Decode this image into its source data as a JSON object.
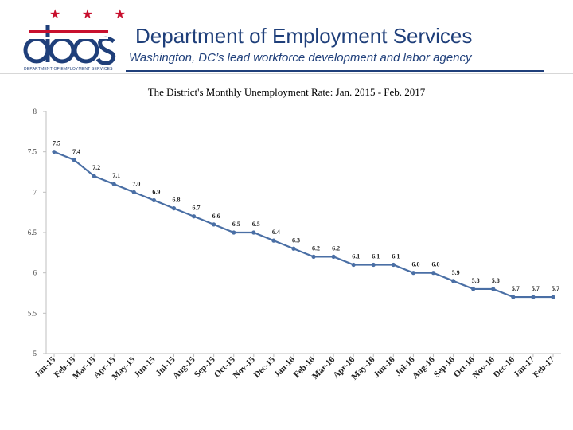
{
  "header": {
    "stars": "★ ★ ★",
    "logo_text": "does",
    "logo_tagline": "DEPARTMENT OF EMPLOYMENT SERVICES",
    "title": "Department of Employment Services",
    "subtitle": "Washington, DC’s lead workforce development and labor agency",
    "colors": {
      "brand_blue": "#1f3f7a",
      "star_red": "#c8102e"
    }
  },
  "chart_data": {
    "type": "line",
    "title": "The District's Monthly Unemployment Rate: Jan. 2015 - Feb. 2017",
    "xlabel": "",
    "ylabel": "",
    "ylim": [
      5,
      8
    ],
    "yticks": [
      "5",
      "5.5",
      "6",
      "6.5",
      "7",
      "7.5",
      "8"
    ],
    "grid": false,
    "line_color": "#4a6fa5",
    "categories": [
      "Jan-15",
      "Feb-15",
      "Mar-15",
      "Apr-15",
      "May-15",
      "Jun-15",
      "Jul-15",
      "Aug-15",
      "Sep-15",
      "Oct-15",
      "Nov-15",
      "Dec-15",
      "Jan-16",
      "Feb-16",
      "Mar-16",
      "Apr-16",
      "May-16",
      "Jun-16",
      "Jul-16",
      "Aug-16",
      "Sep-16",
      "Oct-16",
      "Nov-16",
      "Dec-16",
      "Jan-17",
      "Feb-17"
    ],
    "values": [
      7.5,
      7.4,
      7.2,
      7.1,
      7.0,
      6.9,
      6.8,
      6.7,
      6.6,
      6.5,
      6.5,
      6.4,
      6.3,
      6.2,
      6.2,
      6.1,
      6.1,
      6.1,
      6.0,
      6.0,
      5.9,
      5.8,
      5.8,
      5.7,
      5.7,
      5.7
    ],
    "data_labels": [
      "7.5",
      "7.4",
      "7.2",
      "7.1",
      "7.0",
      "6.9",
      "6.8",
      "6.7",
      "6.6",
      "6.5",
      "6.5",
      "6.4",
      "6.3",
      "6.2",
      "6.2",
      "6.1",
      "6.1",
      "6.1",
      "6.0",
      "6.0",
      "5.9",
      "5.8",
      "5.8",
      "5.7",
      "5.7",
      "5.7"
    ]
  }
}
